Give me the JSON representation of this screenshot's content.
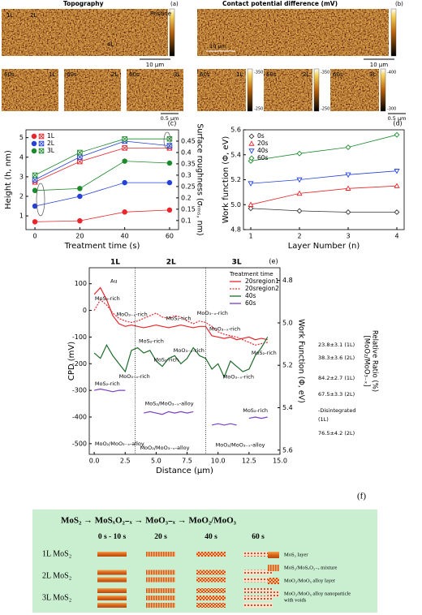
{
  "panel_a": {
    "title": "Topography",
    "letter": "(a)",
    "labels": [
      "1L",
      "2L",
      "4L",
      "Pristine"
    ],
    "scalebar": "10 μm",
    "small": [
      [
        "60s",
        "1L"
      ],
      [
        "60s",
        "2L"
      ],
      [
        "60s",
        "3L"
      ]
    ],
    "small_scalebar": "0.5 μm"
  },
  "panel_b": {
    "title": "Contact potential difference (mV)",
    "letter": "(b)",
    "inner_scale": "10 μm",
    "scalebar": "10 μm",
    "small": [
      [
        "60s",
        "1L"
      ],
      [
        "60s",
        "2L"
      ],
      [
        "60s",
        "3L"
      ]
    ],
    "small_colorbars": [
      [
        "-350",
        "-250"
      ],
      [
        "-350",
        "-250"
      ],
      [
        "-400",
        "-300"
      ]
    ],
    "small_scalebar": "0.5 μm"
  },
  "chart_data": [
    {
      "type": "line",
      "letter": "(c)",
      "x": [
        0,
        20,
        40,
        60
      ],
      "xlim": [
        -4,
        64
      ],
      "xticks": [
        0,
        20,
        40,
        60
      ],
      "xlabel": "Treatment time (s)",
      "ylabel": "Height (h, nm)",
      "y2label": "Surface roughness (σᵣₘₛ, nm)",
      "ylim": [
        0.3,
        5.4
      ],
      "yticks": [
        1,
        2,
        3,
        4,
        5
      ],
      "y2lim": [
        0.06,
        0.5
      ],
      "y2ticks": [
        0.1,
        0.15,
        0.2,
        0.25,
        0.3,
        0.35,
        0.4,
        0.45
      ],
      "legend": "upper left",
      "series": [
        {
          "name": "1L",
          "color": "#e8262c",
          "marker": "circle",
          "values": [
            0.7,
            0.75,
            1.2,
            1.3
          ]
        },
        {
          "name": "2L",
          "color": "#2541d8",
          "marker": "circle",
          "values": [
            1.5,
            2.0,
            2.7,
            2.7
          ]
        },
        {
          "name": "3L",
          "color": "#1e8a2e",
          "marker": "circle",
          "values": [
            2.3,
            2.4,
            3.8,
            3.7
          ]
        },
        {
          "color": "#e8262c",
          "marker": "square",
          "axis": "y2",
          "values": [
            0.27,
            0.36,
            0.42,
            0.42
          ]
        },
        {
          "color": "#2541d8",
          "marker": "square",
          "axis": "y2",
          "values": [
            0.28,
            0.38,
            0.45,
            0.43
          ]
        },
        {
          "color": "#1e8a2e",
          "marker": "square",
          "axis": "y2",
          "values": [
            0.3,
            0.4,
            0.46,
            0.46
          ]
        }
      ]
    },
    {
      "type": "line",
      "letter": "(d)",
      "x": [
        1,
        2,
        3,
        4
      ],
      "xlim": [
        0.85,
        4.15
      ],
      "xticks": [
        1,
        2,
        3,
        4
      ],
      "xlabel": "Layer Number (n)",
      "ylabel": "Work function (Φ, eV)",
      "ylim": [
        4.8,
        5.6
      ],
      "yticks": [
        4.8,
        {
          "value": 5.0,
          "label": "5.0"
        },
        5.2,
        5.4,
        5.6
      ],
      "legend": "upper left",
      "open_markers": true,
      "series": [
        {
          "name": "0s",
          "color": "#333333",
          "marker": "diamond",
          "values": [
            4.97,
            4.95,
            4.94,
            4.94
          ]
        },
        {
          "name": "20s",
          "color": "#e8262c",
          "marker": "triangle-up",
          "values": [
            5.0,
            5.09,
            5.13,
            5.15
          ]
        },
        {
          "name": "40s",
          "color": "#2541d8",
          "marker": "triangle-down",
          "values": [
            5.17,
            5.2,
            5.24,
            5.27
          ]
        },
        {
          "name": "60s",
          "color": "#1e8a2e",
          "marker": "diamond",
          "values": [
            5.35,
            5.41,
            5.46,
            5.56
          ]
        }
      ]
    },
    {
      "type": "line",
      "letter": "(e)",
      "x": [
        0,
        0.5,
        1,
        1.5,
        2,
        2.5,
        3,
        3.5,
        4,
        4.5,
        5,
        5.5,
        6,
        6.5,
        7,
        7.5,
        8,
        8.5,
        9,
        9.5,
        10,
        10.5,
        11,
        11.5,
        12,
        12.5,
        13,
        13.5,
        14
      ],
      "xlim": [
        -0.4,
        15
      ],
      "xticks": [
        {
          "value": 0,
          "label": "0.0"
        },
        2.5,
        {
          "value": 5,
          "label": "5.0"
        },
        7.5,
        {
          "value": 10,
          "label": "10.0"
        },
        12.5,
        {
          "value": 15,
          "label": "15.0"
        }
      ],
      "xlabel": "Distance (μm)",
      "ylabel": "CPD (mV)",
      "y2label": "Work Function (Φ, eV)",
      "ylim": [
        -540,
        160
      ],
      "yticks": [
        -500,
        -400,
        -300,
        -200,
        -100,
        0,
        100
      ],
      "y2lim": [
        5.62,
        4.74
      ],
      "y2ticks": [
        4.8,
        {
          "value": 5.0,
          "label": "5.0"
        },
        5.2,
        5.4,
        5.6
      ],
      "boundaries": [
        3.3,
        9.0
      ],
      "regions": [
        {
          "text": "1L",
          "color": "#e8262c"
        },
        {
          "text": "2L",
          "color": "#1e8a2e"
        },
        {
          "text": "3L",
          "color": "#7b3fc4"
        }
      ],
      "legend": "upper right",
      "legend_title": "Treatment time",
      "series": [
        {
          "name": "20sregion1",
          "color": "#e8262c",
          "values": [
            60,
            85,
            40,
            -20,
            -50,
            -60,
            -55,
            -60,
            -65,
            -60,
            -55,
            -60,
            -65,
            -60,
            -55,
            -60,
            -65,
            -60,
            -60,
            -95,
            -100,
            -105,
            -100,
            -110,
            -105,
            -100,
            -110,
            -105,
            -110
          ]
        },
        {
          "name": "20sregion2",
          "color": "#e8262c",
          "dash": "2,1.5",
          "values": [
            0,
            40,
            20,
            -10,
            -30,
            -40,
            -45,
            -40,
            -30,
            -20,
            -10,
            -25,
            -30,
            -20,
            -25,
            -40,
            -50,
            -40,
            -45,
            -60,
            -80,
            -90,
            -95,
            -100,
            -110,
            -120,
            -130,
            -125,
            -120
          ]
        },
        {
          "name": "40s",
          "color": "#1e6b2a",
          "values": [
            -160,
            -180,
            -130,
            -170,
            -200,
            -230,
            -150,
            -140,
            -160,
            -150,
            -190,
            -210,
            -180,
            -170,
            -200,
            -180,
            -140,
            -170,
            -180,
            -220,
            -200,
            -250,
            -190,
            -210,
            -230,
            -220,
            -170,
            -140,
            -100
          ]
        },
        {
          "name": "60s",
          "color": "#7b3fc4",
          "values": [
            -300,
            -295,
            -300,
            -305,
            -300,
            -300,
            null,
            null,
            -385,
            -380,
            -385,
            -390,
            -380,
            -385,
            -380,
            -385,
            -380,
            null,
            null,
            -430,
            -425,
            -430,
            -425,
            -430,
            null,
            -405,
            -400,
            -405,
            -400
          ]
        }
      ],
      "annotations": [
        {
          "text": "MoS₂-rich",
          "color": "#e8262c"
        },
        {
          "text": "Au",
          "color": "#000000"
        },
        {
          "text": "MoO₃₋ₓ-rich",
          "color": "#e8262c"
        },
        {
          "text": "MoS₂-rich",
          "color": "#e8262c"
        },
        {
          "text": "MoO₃₋ₓ-rich",
          "color": "#e8262c"
        },
        {
          "text": "MoO₃₋ₓ-rich",
          "color": "#e8262c"
        },
        {
          "text": "MoS₂-rich",
          "color": "#e8262c"
        },
        {
          "text": "MoS₂-rich",
          "color": "#1e6b2a"
        },
        {
          "text": "MoS₂-rich",
          "color": "#1e6b2a"
        },
        {
          "text": "MoO₃₋ₓ-rich",
          "color": "#1e6b2a"
        },
        {
          "text": "MoO₃₋ₓ-rich",
          "color": "#1e6b2a"
        },
        {
          "text": "MoO₃₋ₓ-rich",
          "color": "#1e6b2a"
        },
        {
          "text": "MoS₂-rich",
          "color": "#7b3fc4"
        },
        {
          "text": "MoO₂/MoO₃₋ₓ-alloy",
          "color": "#7b3fc4"
        },
        {
          "text": "MoS₂/MoO₃₋ₓ-alloy",
          "color": "#7b3fc4"
        },
        {
          "text": "MoO₂/MoO₃₋ₓ-alloy",
          "color": "#7b3fc4"
        },
        {
          "text": "MoS₂-rich",
          "color": "#7b3fc4"
        },
        {
          "text": "MoO₂/MoO₃₋ₓ-alloy",
          "color": "#7b3fc4"
        }
      ],
      "ratio_label": [
        "[MoO₂/MoO₃₋ₓ]",
        "Relative Ratio (%)"
      ],
      "ratios": [
        {
          "text": "23.8±3.1 (1L)",
          "color": "#e8262c"
        },
        {
          "text": "38.3±3.6 (2L)",
          "color": "#e8262c"
        },
        {
          "text": "84.2±2.7 (1L)",
          "color": "#1e8a2e"
        },
        {
          "text": "67.5±3.3 (2L)",
          "color": "#1e8a2e"
        },
        {
          "text": "-Disintegrated",
          "color": "#7b3fc4"
        },
        {
          "text": "(1L)",
          "color": "#7b3fc4"
        },
        {
          "text": "76.5±4.2 (2L)",
          "color": "#7b3fc4"
        }
      ]
    }
  ],
  "diagram": {
    "letter": "(f)",
    "sequence": "MoS₂ → MoSₓO₂₋ₓ → MoO₃₋ₓ → MoO₂/MoO₃",
    "times": [
      "0 s - 10 s",
      "20 s",
      "40 s",
      "60 s"
    ],
    "rows": [
      {
        "label": "1L MoS₂",
        "color": "#d32f2f"
      },
      {
        "label": "2L MoS₂",
        "color": "#2541d8"
      },
      {
        "label": "3L MoS₂",
        "color": "#1e8a2e"
      }
    ],
    "legend": [
      [
        "MoS₂ layer"
      ],
      [
        "MoS₂/MoSₓO₂₋ₓ mixture"
      ],
      [
        "MoO₂/MoO₃ alloy layer"
      ],
      [
        "MoO₂/MoO₃ alloy nanoparticle",
        "with voids"
      ]
    ]
  }
}
